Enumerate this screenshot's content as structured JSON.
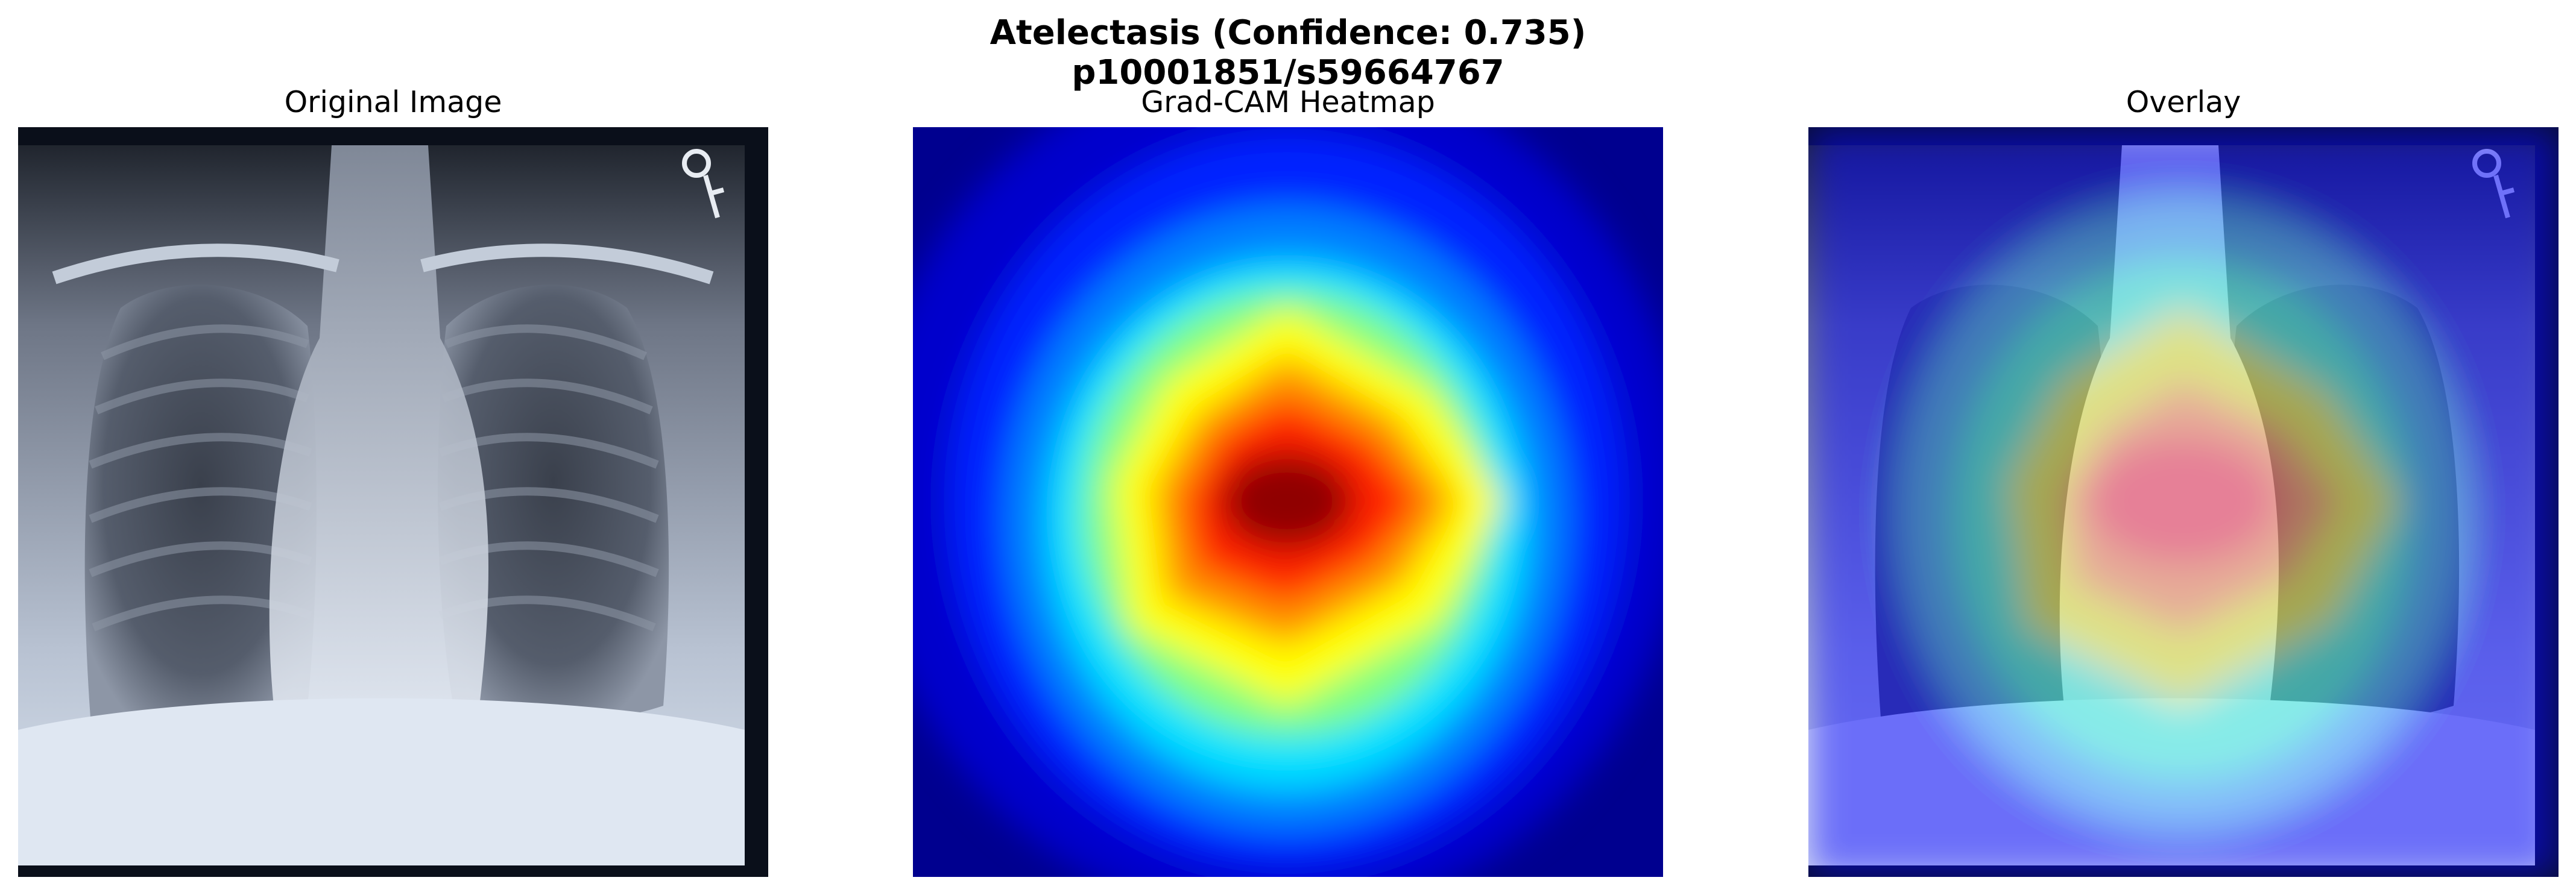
{
  "figure": {
    "title_line1": "Atelectasis (Confidence: 0.735)",
    "title_line2": "p10001851/s59664767"
  },
  "panels": [
    {
      "title": "Original Image"
    },
    {
      "title": "Grad-CAM Heatmap"
    },
    {
      "title": "Overlay"
    }
  ],
  "heatmap": {
    "colormap": "jet"
  }
}
